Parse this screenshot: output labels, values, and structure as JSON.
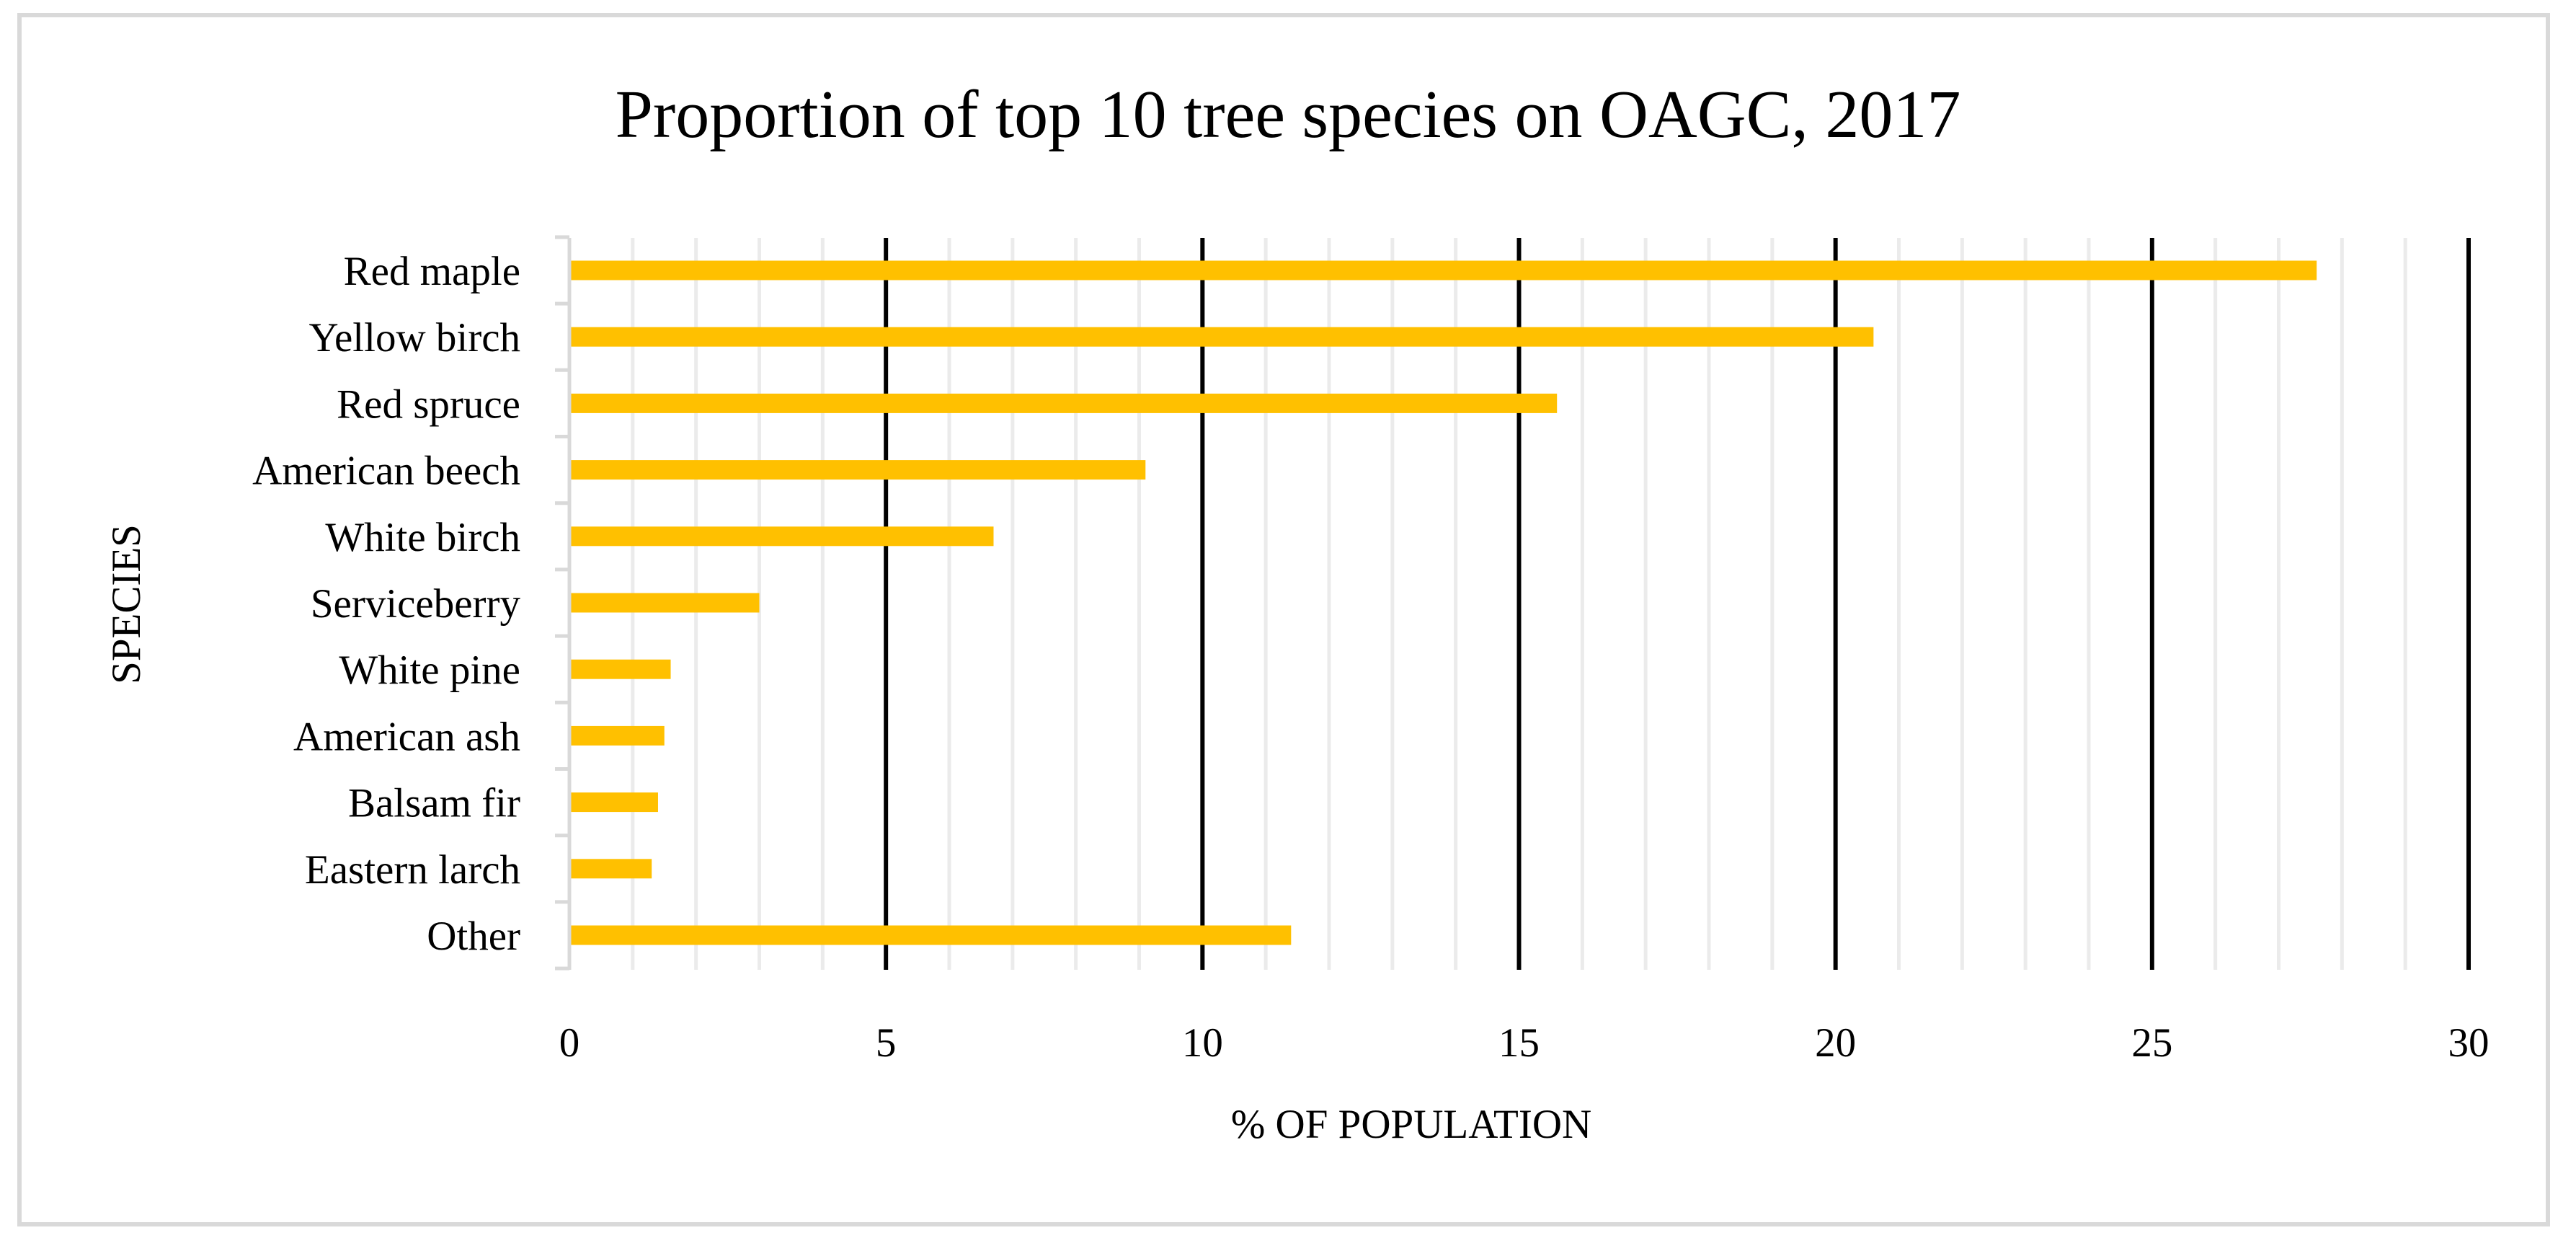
{
  "chart_data": {
    "type": "bar",
    "orientation": "horizontal",
    "title": "Proportion of top 10 tree species on OAGC, 2017",
    "xlabel": "% OF POPULATION",
    "ylabel": "SPECIES",
    "categories": [
      "Red maple",
      "Yellow birch",
      "Red spruce",
      "American beech",
      "White birch",
      "Serviceberry",
      "White pine",
      "American ash",
      "Balsam fir",
      "Eastern larch",
      "Other"
    ],
    "values": [
      27.6,
      20.6,
      15.6,
      9.1,
      6.7,
      3.0,
      1.6,
      1.5,
      1.4,
      1.3,
      11.4
    ],
    "xlim": [
      0,
      30
    ],
    "xticks": [
      "0",
      "5",
      "10",
      "15",
      "20",
      "25",
      "30"
    ],
    "major_tick_step": 5,
    "minor_tick_step": 1,
    "grid": true,
    "legend": "none",
    "colors": {
      "bar": "#ffc000",
      "major_grid": "#000000",
      "minor_grid": "#ebebeb",
      "frame": "#d9d9d9",
      "axis": "#d9d9d9"
    }
  }
}
